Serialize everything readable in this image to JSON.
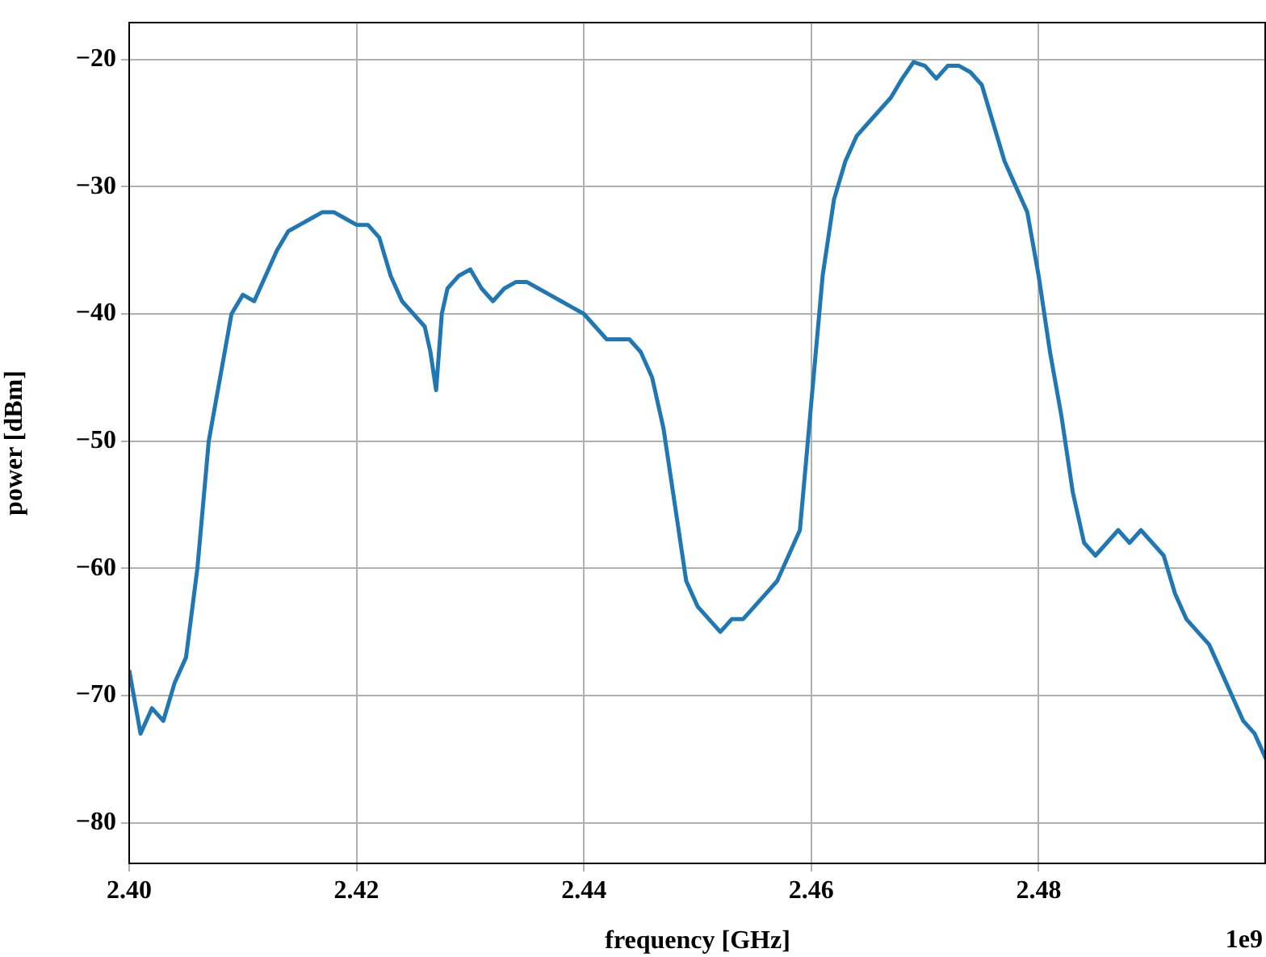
{
  "chart_data": {
    "type": "line",
    "xlabel": "frequency [GHz]",
    "ylabel": "power [dBm]",
    "annotations": [
      "1e9"
    ],
    "xlim": [
      2.4,
      2.5
    ],
    "ylim": [
      -83.2,
      -17.1
    ],
    "xticks": [
      {
        "value": 2.4,
        "label": "2.40"
      },
      {
        "value": 2.42,
        "label": "2.42"
      },
      {
        "value": 2.44,
        "label": "2.44"
      },
      {
        "value": 2.46,
        "label": "2.46"
      },
      {
        "value": 2.48,
        "label": "2.48"
      }
    ],
    "yticks": [
      {
        "value": -80,
        "label": "−80"
      },
      {
        "value": -70,
        "label": "−70"
      },
      {
        "value": -60,
        "label": "−60"
      },
      {
        "value": -50,
        "label": "−50"
      },
      {
        "value": -40,
        "label": "−40"
      },
      {
        "value": -30,
        "label": "−30"
      },
      {
        "value": -20,
        "label": "−20"
      }
    ],
    "grid": true,
    "legend": false,
    "marker": "none",
    "line_style": "solid",
    "series": [
      {
        "color": "#1f77b4",
        "x": [
          2.4,
          2.401,
          2.402,
          2.403,
          2.404,
          2.405,
          2.406,
          2.407,
          2.408,
          2.409,
          2.41,
          2.411,
          2.412,
          2.413,
          2.414,
          2.415,
          2.416,
          2.417,
          2.418,
          2.419,
          2.42,
          2.421,
          2.422,
          2.423,
          2.424,
          2.425,
          2.426,
          2.4265,
          2.427,
          2.4275,
          2.428,
          2.429,
          2.43,
          2.431,
          2.432,
          2.433,
          2.434,
          2.435,
          2.436,
          2.437,
          2.438,
          2.439,
          2.44,
          2.441,
          2.442,
          2.443,
          2.444,
          2.445,
          2.446,
          2.447,
          2.448,
          2.449,
          2.45,
          2.451,
          2.452,
          2.453,
          2.454,
          2.455,
          2.456,
          2.457,
          2.458,
          2.459,
          2.46,
          2.461,
          2.462,
          2.463,
          2.464,
          2.465,
          2.466,
          2.467,
          2.468,
          2.469,
          2.47,
          2.471,
          2.472,
          2.473,
          2.474,
          2.475,
          2.476,
          2.477,
          2.478,
          2.479,
          2.48,
          2.481,
          2.482,
          2.483,
          2.484,
          2.485,
          2.486,
          2.487,
          2.488,
          2.489,
          2.49,
          2.491,
          2.492,
          2.493,
          2.494,
          2.495,
          2.496,
          2.497,
          2.498,
          2.499,
          2.5
        ],
        "values": [
          -68,
          -73,
          -71,
          -72,
          -69,
          -67,
          -60,
          -50,
          -45,
          -40,
          -38.5,
          -39,
          -37,
          -35,
          -33.5,
          -33,
          -32.5,
          -32,
          -32,
          -32.5,
          -33,
          -33,
          -34,
          -37,
          -39,
          -40,
          -41,
          -43,
          -46,
          -40,
          -38,
          -37,
          -36.5,
          -38,
          -39,
          -38,
          -37.5,
          -37.5,
          -38,
          -38.5,
          -39,
          -39.5,
          -40,
          -41,
          -42,
          -42,
          -42,
          -43,
          -45,
          -49,
          -55,
          -61,
          -63,
          -64,
          -65,
          -64,
          -64,
          -63,
          -62,
          -61,
          -59,
          -57,
          -47,
          -37,
          -31,
          -28,
          -26,
          -25,
          -24,
          -23,
          -21.5,
          -20.2,
          -20.5,
          -21.5,
          -20.5,
          -20.5,
          -21,
          -22,
          -25,
          -28,
          -30,
          -32,
          -37,
          -43,
          -48,
          -54,
          -58,
          -59,
          -58,
          -57,
          -58,
          -57,
          -58,
          -59,
          -62,
          -64,
          -65,
          -66,
          -68,
          -70,
          -72,
          -73,
          -75
        ]
      }
    ]
  }
}
